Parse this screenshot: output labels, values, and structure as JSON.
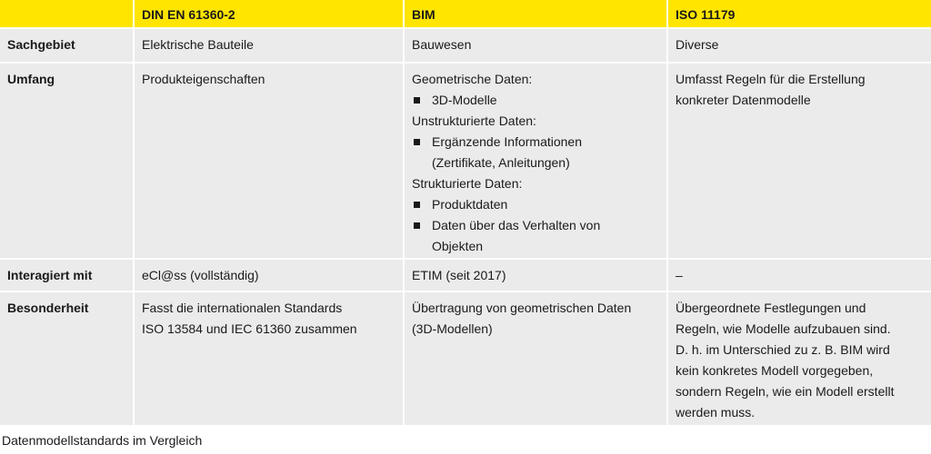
{
  "table": {
    "header": [
      "DIN EN 61360-2",
      "BIM",
      "ISO 11179"
    ],
    "rows": [
      {
        "label": "Sachgebiet",
        "cells": [
          [
            "Elektrische Bauteile"
          ],
          [
            "Bauwesen"
          ],
          [
            "Diverse"
          ]
        ]
      },
      {
        "label": "Umfang",
        "cells": [
          [
            "Produkteigenschaften"
          ],
          {
            "groups": [
              {
                "heading": "Geometrische Daten:",
                "items": [
                  [
                    "3D-Modelle"
                  ]
                ]
              },
              {
                "heading": "Unstrukturierte Daten:",
                "items": [
                  [
                    "Ergänzende Informationen",
                    "(Zertifikate, Anleitungen)"
                  ]
                ]
              },
              {
                "heading": "Strukturierte Daten:",
                "items": [
                  [
                    "Produktdaten"
                  ],
                  [
                    "Daten über das Verhalten von",
                    "Objekten"
                  ]
                ]
              }
            ]
          },
          [
            "Umfasst Regeln für die Erstellung",
            "konkreter Datenmodelle"
          ]
        ]
      },
      {
        "label": "Interagiert mit",
        "cells": [
          [
            "eCl@ss (vollständig)"
          ],
          [
            "ETIM (seit 2017)"
          ],
          [
            "–"
          ]
        ]
      },
      {
        "label": "Besonderheit",
        "cells": [
          [
            "Fasst die internationalen Standards",
            "ISO 13584 und IEC 61360 zusammen"
          ],
          [
            "Übertragung von geometrischen Daten",
            "(3D-Modellen)"
          ],
          [
            "Übergeordnete Festlegungen und",
            "Regeln, wie Modelle aufzubauen sind.",
            "D. h. im Unterschied zu z. B. BIM wird",
            "kein konkretes Modell vorgegeben,",
            "sondern Regeln, wie ein Modell erstellt",
            "werden muss."
          ]
        ]
      }
    ]
  },
  "caption": "Datenmodellstandards im Vergleich"
}
